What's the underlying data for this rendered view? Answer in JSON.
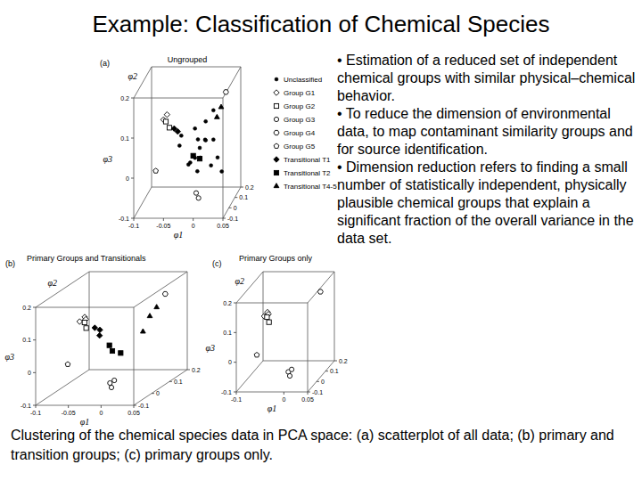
{
  "title": "Example: Classification of Chemical Species",
  "bullets": [
    "• Estimation of a reduced set of independent chemical groups with similar physical–chemical behavior.",
    "• To reduce the dimension of environmental data, to map contaminant similarity groups and for source identification.",
    "• Dimension reduction refers to finding a small number of statistically independent, physically plausible chemical groups that explain a significant fraction of the overall variance in the data set."
  ],
  "caption": "Clustering of the chemical species data in PCA space: (a) scatterplot of all data; (b) primary and transition groups; (c) primary groups only.",
  "chart_data": [
    {
      "type": "scatter",
      "panel": "(a)",
      "title": "Ungrouped",
      "x_label": "φ1",
      "y_label": "φ2",
      "z_label": "φ3",
      "xlim": [
        -0.1,
        0.05
      ],
      "ylim": [
        -0.1,
        0.2
      ],
      "zlim": [
        -0.1,
        0.2
      ],
      "xticks": [
        -0.1,
        -0.05,
        0,
        0.05
      ],
      "yticks": [
        -0.1,
        0,
        0.1,
        0.2
      ],
      "zticks": [
        -0.1,
        0,
        0.1,
        0.2
      ],
      "legend": "right",
      "series": [
        {
          "name": "Unclassified",
          "marker": "dot",
          "color": "#000000",
          "x": [
            -0.02,
            -0.01,
            0,
            0.01,
            -0.03,
            0.005,
            -0.015,
            0.02,
            -0.005,
            0.015,
            -0.025,
            0.01,
            0,
            -0.01,
            0.025,
            -0.035,
            0.03,
            0.005
          ],
          "y": [
            0.05,
            0.08,
            0.02,
            0.1,
            0,
            0.06,
            0.12,
            0.04,
            -0.02,
            0.09,
            0.07,
            0,
            0.11,
            0.03,
            0.06,
            0.02,
            0.08,
            -0.04
          ],
          "z": [
            0,
            0.05,
            0.02,
            -0.02,
            0.08,
            0.1,
            -0.04,
            0.06,
            0.03,
            0.12,
            -0.01,
            0.07,
            0.04,
            0.09,
            0.01,
            0.05,
            -0.03,
            0.06
          ]
        },
        {
          "name": "Group G1",
          "marker": "diamond",
          "color": "#000000",
          "x": [
            -0.06,
            -0.055
          ],
          "y": [
            0,
            0.01
          ],
          "z": [
            0.12,
            0.13
          ]
        },
        {
          "name": "Group G2",
          "marker": "square",
          "color": "#000000",
          "x": [
            -0.058,
            -0.05
          ],
          "y": [
            0.02,
            0
          ],
          "z": [
            0.11,
            0.1
          ]
        },
        {
          "name": "Group G3",
          "marker": "circle",
          "color": "#000000",
          "x": [
            0,
            0.005
          ],
          "y": [
            -0.05,
            -0.06
          ],
          "z": [
            -0.05,
            -0.06
          ]
        },
        {
          "name": "Group G4",
          "marker": "hexagon",
          "color": "#000000",
          "x": [
            0.03
          ],
          "y": [
            0.15
          ],
          "z": [
            0.15
          ]
        },
        {
          "name": "Group G5",
          "marker": "pentagon",
          "color": "#000000",
          "x": [
            -0.07
          ],
          "y": [
            -0.03
          ],
          "z": [
            0
          ]
        },
        {
          "name": "Transitional T1",
          "marker": "filled-diamond",
          "color": "#000000",
          "x": [
            -0.045,
            -0.04
          ],
          "y": [
            0.03,
            0.04
          ],
          "z": [
            0.09,
            0.08
          ]
        },
        {
          "name": "Transitional T2",
          "marker": "filled-square",
          "color": "#000000",
          "x": [
            -0.01,
            0
          ],
          "y": [
            0,
            0.01
          ],
          "z": [
            0.03,
            0.02
          ]
        },
        {
          "name": "Transitional T4-5",
          "marker": "filled-triangle",
          "color": "#000000",
          "x": [
            0.02,
            0.025
          ],
          "y": [
            0.1,
            0.12
          ],
          "z": [
            0.1,
            0.12
          ]
        }
      ]
    },
    {
      "type": "scatter",
      "panel": "(b)",
      "title": "Primary Groups and Transitionals",
      "x_label": "φ1",
      "y_label": "φ2",
      "z_label": "φ3",
      "xlim": [
        -0.1,
        0.05
      ],
      "ylim": [
        -0.1,
        0.2
      ],
      "zlim": [
        -0.1,
        0.2
      ],
      "xticks": [
        -0.1,
        -0.05,
        0,
        0.05
      ],
      "yticks": [
        -0.1,
        0,
        0.1,
        0.2
      ],
      "zticks": [
        -0.1,
        0,
        0.1,
        0.2
      ],
      "series": [
        {
          "marker": "diamond",
          "color": "#000000",
          "x": [
            -0.06,
            -0.055,
            -0.052
          ],
          "y": [
            0,
            0.01,
            0.005
          ],
          "z": [
            0.12,
            0.13,
            0.125
          ]
        },
        {
          "marker": "square",
          "color": "#000000",
          "x": [
            -0.058,
            -0.05
          ],
          "y": [
            0.02,
            0
          ],
          "z": [
            0.11,
            0.1
          ]
        },
        {
          "marker": "circle",
          "color": "#000000",
          "x": [
            0,
            0.005,
            0.008
          ],
          "y": [
            -0.05,
            -0.06,
            -0.055
          ],
          "z": [
            -0.05,
            -0.06,
            -0.04
          ]
        },
        {
          "marker": "hexagon",
          "color": "#000000",
          "x": [
            0.03
          ],
          "y": [
            0.15
          ],
          "z": [
            0.15
          ]
        },
        {
          "marker": "pentagon",
          "color": "#000000",
          "x": [
            -0.07
          ],
          "y": [
            -0.03
          ],
          "z": [
            0
          ]
        },
        {
          "marker": "filled-diamond",
          "color": "#000000",
          "x": [
            -0.045,
            -0.04,
            -0.035
          ],
          "y": [
            0.03,
            0.04,
            0.02
          ],
          "z": [
            0.09,
            0.08,
            0.07
          ]
        },
        {
          "marker": "filled-square",
          "color": "#000000",
          "x": [
            -0.01,
            0,
            -0.02
          ],
          "y": [
            0,
            0.01,
            0.02
          ],
          "z": [
            0.03,
            0.02,
            0.04
          ]
        },
        {
          "marker": "filled-triangle",
          "color": "#000000",
          "x": [
            0.02,
            0.025,
            0.015
          ],
          "y": [
            0.1,
            0.12,
            0.08
          ],
          "z": [
            0.1,
            0.12,
            0.06
          ]
        }
      ]
    },
    {
      "type": "scatter",
      "panel": "(c)",
      "title": "Primary Groups only",
      "x_label": "φ1",
      "y_label": "φ2",
      "z_label": "φ3",
      "xlim": [
        -0.1,
        0.05
      ],
      "ylim": [
        -0.1,
        0.2
      ],
      "zlim": [
        -0.1,
        0.2
      ],
      "xticks": [
        -0.1,
        0,
        0.05
      ],
      "yticks": [
        -0.1,
        0,
        0.1,
        0.2
      ],
      "zticks": [
        -0.1,
        0,
        0.1,
        0.2
      ],
      "series": [
        {
          "marker": "diamond",
          "color": "#000000",
          "x": [
            -0.06,
            -0.055,
            -0.052
          ],
          "y": [
            0,
            0.01,
            0.005
          ],
          "z": [
            0.12,
            0.13,
            0.125
          ]
        },
        {
          "marker": "square",
          "color": "#000000",
          "x": [
            -0.058,
            -0.05
          ],
          "y": [
            0.02,
            0
          ],
          "z": [
            0.11,
            0.1
          ]
        },
        {
          "marker": "circle",
          "color": "#000000",
          "x": [
            0,
            0.005,
            0.008
          ],
          "y": [
            -0.05,
            -0.06,
            -0.055
          ],
          "z": [
            -0.05,
            -0.06,
            -0.04
          ]
        },
        {
          "marker": "hexagon",
          "color": "#000000",
          "x": [
            0.03
          ],
          "y": [
            0.15
          ],
          "z": [
            0.15
          ]
        },
        {
          "marker": "pentagon",
          "color": "#000000",
          "x": [
            -0.07
          ],
          "y": [
            -0.03
          ],
          "z": [
            0
          ]
        }
      ]
    }
  ]
}
